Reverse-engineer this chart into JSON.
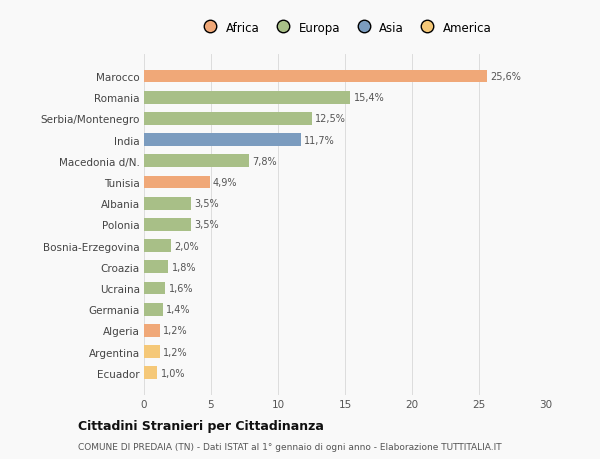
{
  "countries": [
    "Marocco",
    "Romania",
    "Serbia/Montenegro",
    "India",
    "Macedonia d/N.",
    "Tunisia",
    "Albania",
    "Polonia",
    "Bosnia-Erzegovina",
    "Croazia",
    "Ucraina",
    "Germania",
    "Algeria",
    "Argentina",
    "Ecuador"
  ],
  "values": [
    25.6,
    15.4,
    12.5,
    11.7,
    7.8,
    4.9,
    3.5,
    3.5,
    2.0,
    1.8,
    1.6,
    1.4,
    1.2,
    1.2,
    1.0
  ],
  "labels": [
    "25,6%",
    "15,4%",
    "12,5%",
    "11,7%",
    "7,8%",
    "4,9%",
    "3,5%",
    "3,5%",
    "2,0%",
    "1,8%",
    "1,6%",
    "1,4%",
    "1,2%",
    "1,2%",
    "1,0%"
  ],
  "colors": [
    "#f0a878",
    "#a8bf87",
    "#a8bf87",
    "#7b9cbf",
    "#a8bf87",
    "#f0a878",
    "#a8bf87",
    "#a8bf87",
    "#a8bf87",
    "#a8bf87",
    "#a8bf87",
    "#a8bf87",
    "#f0a878",
    "#f5c878",
    "#f5c878"
  ],
  "continent_colors": {
    "Africa": "#f0a878",
    "Europa": "#a8bf87",
    "Asia": "#7b9cbf",
    "America": "#f5c878"
  },
  "title": "Cittadini Stranieri per Cittadinanza",
  "subtitle": "COMUNE DI PREDAIA (TN) - Dati ISTAT al 1° gennaio di ogni anno - Elaborazione TUTTITALIA.IT",
  "xlim": [
    0,
    30
  ],
  "xticks": [
    0,
    5,
    10,
    15,
    20,
    25,
    30
  ],
  "background_color": "#f9f9f9",
  "bar_height": 0.6
}
